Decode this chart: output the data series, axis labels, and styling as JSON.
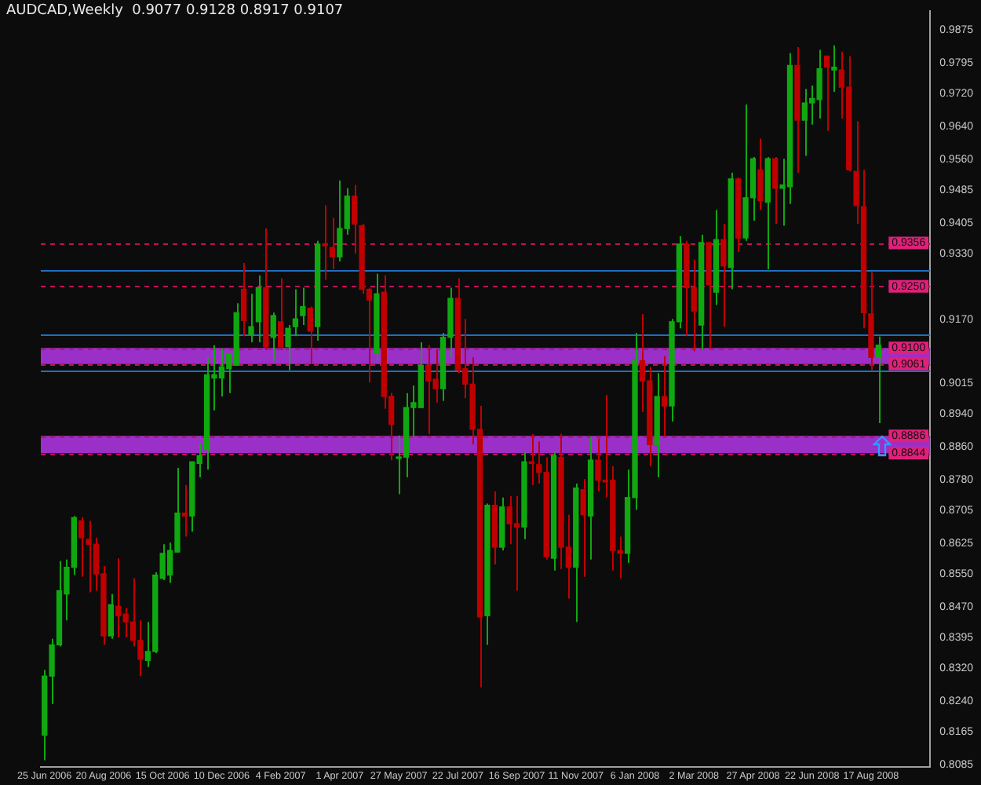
{
  "chart_data": {
    "type": "candlestick",
    "title": "AUDCAD,Weekly  0.9077 0.9128 0.8917 0.9107",
    "categories": [
      "25 Jun 2006",
      null,
      null,
      null,
      null,
      null,
      null,
      null,
      "20 Aug 2006",
      null,
      null,
      null,
      null,
      null,
      null,
      null,
      "15 Oct 2006",
      null,
      null,
      null,
      null,
      null,
      null,
      null,
      "10 Dec 2006",
      null,
      null,
      null,
      null,
      null,
      null,
      null,
      "4 Feb 2007",
      null,
      null,
      null,
      null,
      null,
      null,
      null,
      "1 Apr 2007",
      null,
      null,
      null,
      null,
      null,
      null,
      null,
      "27 May 2007",
      null,
      null,
      null,
      null,
      null,
      null,
      null,
      "22 Jul 2007",
      null,
      null,
      null,
      null,
      null,
      null,
      null,
      "16 Sep 2007",
      null,
      null,
      null,
      null,
      null,
      null,
      null,
      "11 Nov 2007",
      null,
      null,
      null,
      null,
      null,
      null,
      null,
      "6 Jan 2008",
      null,
      null,
      null,
      null,
      null,
      null,
      null,
      "2 Mar 2008",
      null,
      null,
      null,
      null,
      null,
      null,
      null,
      "27 Apr 2008",
      null,
      null,
      null,
      null,
      null,
      null,
      null,
      "22 Jun 2008",
      null,
      null,
      null,
      null,
      null,
      null,
      null,
      "17 Aug 2008",
      null
    ],
    "ohlc": [
      [
        0.8157,
        0.8316,
        0.8096,
        0.8301
      ],
      [
        0.8301,
        0.8392,
        0.8233,
        0.8377
      ],
      [
        0.8377,
        0.8581,
        0.8373,
        0.8509
      ],
      [
        0.8501,
        0.8585,
        0.8437,
        0.8566
      ],
      [
        0.8566,
        0.8691,
        0.8547,
        0.8687
      ],
      [
        0.8679,
        0.8687,
        0.8543,
        0.8638
      ],
      [
        0.8634,
        0.8679,
        0.8505,
        0.8622
      ],
      [
        0.8622,
        0.8638,
        0.8509,
        0.855
      ],
      [
        0.855,
        0.8569,
        0.8377,
        0.8399
      ],
      [
        0.8399,
        0.8501,
        0.8392,
        0.8475
      ],
      [
        0.8471,
        0.8588,
        0.8395,
        0.8448
      ],
      [
        0.8452,
        0.8467,
        0.8395,
        0.8433
      ],
      [
        0.8433,
        0.8539,
        0.8373,
        0.8388
      ],
      [
        0.8388,
        0.8437,
        0.8301,
        0.8342
      ],
      [
        0.8339,
        0.8433,
        0.8323,
        0.8361
      ],
      [
        0.8361,
        0.8554,
        0.8357,
        0.8547
      ],
      [
        0.8539,
        0.8622,
        0.8535,
        0.86
      ],
      [
        0.8547,
        0.8626,
        0.8528,
        0.8607
      ],
      [
        0.8603,
        0.8808,
        0.8603,
        0.8698
      ],
      [
        0.8698,
        0.8766,
        0.8641,
        0.8691
      ],
      [
        0.8691,
        0.8823,
        0.8653,
        0.8823
      ],
      [
        0.8819,
        0.8868,
        0.8785,
        0.8838
      ],
      [
        0.8853,
        0.9077,
        0.8804,
        0.9035
      ],
      [
        0.9027,
        0.9107,
        0.8948,
        0.9035
      ],
      [
        0.9027,
        0.9099,
        0.8982,
        0.9054
      ],
      [
        0.905,
        0.9088,
        0.899,
        0.9084
      ],
      [
        0.9058,
        0.9209,
        0.9058,
        0.9186
      ],
      [
        0.9243,
        0.9307,
        0.9129,
        0.9167
      ],
      [
        0.9133,
        0.9232,
        0.9114,
        0.9152
      ],
      [
        0.9164,
        0.9277,
        0.9114,
        0.9247
      ],
      [
        0.9247,
        0.9391,
        0.9095,
        0.9103
      ],
      [
        0.9126,
        0.9186,
        0.9069,
        0.9179
      ],
      [
        0.9164,
        0.927,
        0.9095,
        0.9103
      ],
      [
        0.9103,
        0.9156,
        0.9046,
        0.9148
      ],
      [
        0.9152,
        0.9243,
        0.9129,
        0.9171
      ],
      [
        0.9179,
        0.9247,
        0.9156,
        0.9201
      ],
      [
        0.9197,
        0.9201,
        0.9061,
        0.9141
      ],
      [
        0.9152,
        0.9361,
        0.9118,
        0.9353
      ],
      [
        0.9353,
        0.9447,
        0.9266,
        0.9349
      ],
      [
        0.9345,
        0.9417,
        0.9292,
        0.9322
      ],
      [
        0.9322,
        0.9508,
        0.9311,
        0.9391
      ],
      [
        0.9391,
        0.9489,
        0.9376,
        0.947
      ],
      [
        0.947,
        0.9497,
        0.933,
        0.9402
      ],
      [
        0.9398,
        0.9402,
        0.9232,
        0.9243
      ],
      [
        0.9243,
        0.9247,
        0.9016,
        0.9217
      ],
      [
        0.9088,
        0.9281,
        0.9069,
        0.9232
      ],
      [
        0.9236,
        0.9277,
        0.8952,
        0.8982
      ],
      [
        0.8982,
        0.899,
        0.8827,
        0.8914
      ],
      [
        0.8831,
        0.8887,
        0.8744,
        0.8834
      ],
      [
        0.8834,
        0.899,
        0.8785,
        0.8955
      ],
      [
        0.8955,
        0.9009,
        0.8884,
        0.8967
      ],
      [
        0.8955,
        0.9114,
        0.8955,
        0.9058
      ],
      [
        0.9058,
        0.9107,
        0.8891,
        0.902
      ],
      [
        0.9024,
        0.9095,
        0.8967,
        0.9001
      ],
      [
        0.9001,
        0.9137,
        0.8971,
        0.9126
      ],
      [
        0.9126,
        0.9247,
        0.9077,
        0.9221
      ],
      [
        0.9221,
        0.927,
        0.9039,
        0.9046
      ],
      [
        0.905,
        0.9171,
        0.8978,
        0.9012
      ],
      [
        0.9012,
        0.9077,
        0.8865,
        0.8902
      ],
      [
        0.8902,
        0.8959,
        0.8274,
        0.8445
      ],
      [
        0.8448,
        0.8721,
        0.8377,
        0.8717
      ],
      [
        0.8717,
        0.8751,
        0.8573,
        0.8615
      ],
      [
        0.8615,
        0.8736,
        0.8607,
        0.8713
      ],
      [
        0.8713,
        0.874,
        0.8622,
        0.8672
      ],
      [
        0.8672,
        0.874,
        0.8509,
        0.8664
      ],
      [
        0.8664,
        0.8846,
        0.8634,
        0.8823
      ],
      [
        0.8823,
        0.8891,
        0.8766,
        0.8819
      ],
      [
        0.8816,
        0.8872,
        0.877,
        0.8797
      ],
      [
        0.8797,
        0.8834,
        0.8585,
        0.8592
      ],
      [
        0.8588,
        0.8846,
        0.8558,
        0.8838
      ],
      [
        0.8834,
        0.8891,
        0.8562,
        0.8615
      ],
      [
        0.8615,
        0.8694,
        0.849,
        0.8566
      ],
      [
        0.8566,
        0.877,
        0.8433,
        0.8759
      ],
      [
        0.8755,
        0.8781,
        0.8543,
        0.8694
      ],
      [
        0.8691,
        0.8884,
        0.8585,
        0.8827
      ],
      [
        0.8827,
        0.888,
        0.8751,
        0.8778
      ],
      [
        0.8778,
        0.8986,
        0.8736,
        0.8774
      ],
      [
        0.8778,
        0.8812,
        0.8558,
        0.8607
      ],
      [
        0.8607,
        0.8641,
        0.8539,
        0.86
      ],
      [
        0.86,
        0.8804,
        0.8577,
        0.8736
      ],
      [
        0.8736,
        0.9137,
        0.8706,
        0.9069
      ],
      [
        0.9069,
        0.9183,
        0.8944,
        0.902
      ],
      [
        0.902,
        0.9054,
        0.8812,
        0.8865
      ],
      [
        0.8865,
        0.9039,
        0.8785,
        0.8982
      ],
      [
        0.8982,
        0.908,
        0.8887,
        0.8959
      ],
      [
        0.8959,
        0.9171,
        0.8921,
        0.9164
      ],
      [
        0.9164,
        0.9372,
        0.9148,
        0.9353
      ],
      [
        0.9353,
        0.9361,
        0.9129,
        0.9247
      ],
      [
        0.9247,
        0.9315,
        0.9092,
        0.919
      ],
      [
        0.9156,
        0.9376,
        0.9095,
        0.9357
      ],
      [
        0.9357,
        0.9357,
        0.9099,
        0.9254
      ],
      [
        0.9236,
        0.9436,
        0.9205,
        0.9364
      ],
      [
        0.9364,
        0.9402,
        0.9152,
        0.93
      ],
      [
        0.9296,
        0.9527,
        0.9243,
        0.9512
      ],
      [
        0.9512,
        0.9515,
        0.9334,
        0.9368
      ],
      [
        0.9368,
        0.9693,
        0.9361,
        0.9466
      ],
      [
        0.9466,
        0.9565,
        0.941,
        0.9561
      ],
      [
        0.9534,
        0.961,
        0.9436,
        0.9459
      ],
      [
        0.9455,
        0.9565,
        0.9292,
        0.9561
      ],
      [
        0.9561,
        0.9565,
        0.9402,
        0.9489
      ],
      [
        0.9489,
        0.9561,
        0.9398,
        0.9497
      ],
      [
        0.9493,
        0.9818,
        0.9451,
        0.9788
      ],
      [
        0.9788,
        0.9833,
        0.9527,
        0.9655
      ],
      [
        0.9655,
        0.9731,
        0.9568,
        0.9697
      ],
      [
        0.9697,
        0.9739,
        0.9644,
        0.9708
      ],
      [
        0.9705,
        0.9826,
        0.9659,
        0.978
      ],
      [
        0.9811,
        0.9811,
        0.9629,
        0.9784
      ],
      [
        0.9777,
        0.9837,
        0.9724,
        0.9784
      ],
      [
        0.9777,
        0.9822,
        0.9659,
        0.9735
      ],
      [
        0.9735,
        0.9811,
        0.953,
        0.9534
      ],
      [
        0.953,
        0.9652,
        0.9402,
        0.9447
      ],
      [
        0.9444,
        0.9534,
        0.9148,
        0.9186
      ],
      [
        0.9183,
        0.9285,
        0.9046,
        0.9077
      ],
      [
        0.9077,
        0.9128,
        0.8917,
        0.9107
      ]
    ],
    "colors": [
      "#10a810",
      "#10a810",
      "#10a810",
      "#10a810",
      "#10a810",
      "#c00000",
      "#c00000",
      "#c00000",
      "#c00000",
      "#10a810",
      "#c00000",
      "#c00000",
      "#c00000",
      "#c00000",
      "#10a810",
      "#10a810",
      "#10a810",
      "#10a810",
      "#10a810",
      "#c00000",
      "#10a810",
      "#10a810",
      "#10a810",
      "#10a810",
      "#10a810",
      "#10a810",
      "#10a810",
      "#c00000",
      "#10a810",
      "#10a810",
      "#c00000",
      "#10a810",
      "#c00000",
      "#10a810",
      "#10a810",
      "#10a810",
      "#c00000",
      "#10a810",
      "#c00000",
      "#c00000",
      "#10a810",
      "#10a810",
      "#c00000",
      "#c00000",
      "#c00000",
      "#10a810",
      "#c00000",
      "#c00000",
      "#10a810",
      "#10a810",
      "#10a810",
      "#10a810",
      "#c00000",
      "#c00000",
      "#10a810",
      "#10a810",
      "#c00000",
      "#c00000",
      "#c00000",
      "#c00000",
      "#10a810",
      "#c00000",
      "#10a810",
      "#c00000",
      "#c00000",
      "#10a810",
      "#c00000",
      "#c00000",
      "#c00000",
      "#10a810",
      "#c00000",
      "#c00000",
      "#10a810",
      "#c00000",
      "#10a810",
      "#c00000",
      "#c00000",
      "#c00000",
      "#c00000",
      "#10a810",
      "#10a810",
      "#c00000",
      "#c00000",
      "#10a810",
      "#c00000",
      "#10a810",
      "#10a810",
      "#c00000",
      "#c00000",
      "#10a810",
      "#c00000",
      "#10a810",
      "#c00000",
      "#10a810",
      "#c00000",
      "#10a810",
      "#10a810",
      "#c00000",
      "#10a810",
      "#c00000",
      "#10a810",
      "#10a810",
      "#c00000",
      "#10a810",
      "#10a810",
      "#10a810",
      "#c00000",
      "#10a810",
      "#c00000",
      "#c00000",
      "#c00000",
      "#c00000",
      "#c00000",
      "#10a810"
    ],
    "ylim": [
      0.808,
      0.992
    ],
    "yticks": [
      0.9875,
      {
        "value": 0.9795,
        "label": "0.9795"
      },
      {
        "value": 0.972,
        "label": "0.9720"
      },
      {
        "value": 0.964,
        "label": "0.9640"
      },
      {
        "value": 0.956,
        "label": "0.9560"
      },
      0.9485,
      0.9405,
      {
        "value": 0.933,
        "label": "0.9330"
      },
      {
        "value": 0.917,
        "label": "0.9170"
      },
      0.9015,
      {
        "value": 0.894,
        "label": "0.8940"
      },
      {
        "value": 0.886,
        "label": "0.8860"
      },
      {
        "value": 0.878,
        "label": "0.8780"
      },
      0.8705,
      0.8625,
      {
        "value": 0.855,
        "label": "0.8550"
      },
      {
        "value": 0.847,
        "label": "0.8470"
      },
      0.8395,
      {
        "value": 0.832,
        "label": "0.8320"
      },
      {
        "value": 0.824,
        "label": "0.8240"
      },
      0.8165,
      0.8085
    ],
    "grid": false,
    "bands": [
      {
        "axis": "y",
        "from": 0.9061,
        "to": 0.91,
        "color": "#9b30c8"
      },
      {
        "axis": "y",
        "from": 0.8844,
        "to": 0.8886,
        "color": "#9b30c8"
      }
    ],
    "ref_lines": [
      {
        "axis": "y",
        "value": 0.9356,
        "label": "0.9356",
        "color": "#c0105a",
        "line_style": "dashed"
      },
      {
        "axis": "y",
        "value": 0.925,
        "label": "0.9250",
        "color": "#c0105a",
        "line_style": "dashed"
      },
      {
        "axis": "y",
        "value": 0.91,
        "label": "0.9100",
        "color": "#c0105a",
        "line_style": "dashed"
      },
      {
        "axis": "y",
        "value": 0.9061,
        "label": "0.9061",
        "color": "#c0105a",
        "line_style": "dashed"
      },
      {
        "axis": "y",
        "value": 0.8886,
        "label": "0.8886",
        "color": "#c0105a",
        "line_style": "dashed"
      },
      {
        "axis": "y",
        "value": 0.8844,
        "label": "0.8844",
        "color": "#c0105a",
        "line_style": "dashed"
      },
      {
        "axis": "y",
        "value": 0.9288,
        "color": "#1f6fbf",
        "line_style": "solid"
      },
      {
        "axis": "y",
        "value": 0.9133,
        "color": "#1f6fbf",
        "line_style": "solid"
      },
      {
        "axis": "y",
        "value": 0.9047,
        "color": "#1f6fbf",
        "line_style": "solid"
      }
    ]
  }
}
